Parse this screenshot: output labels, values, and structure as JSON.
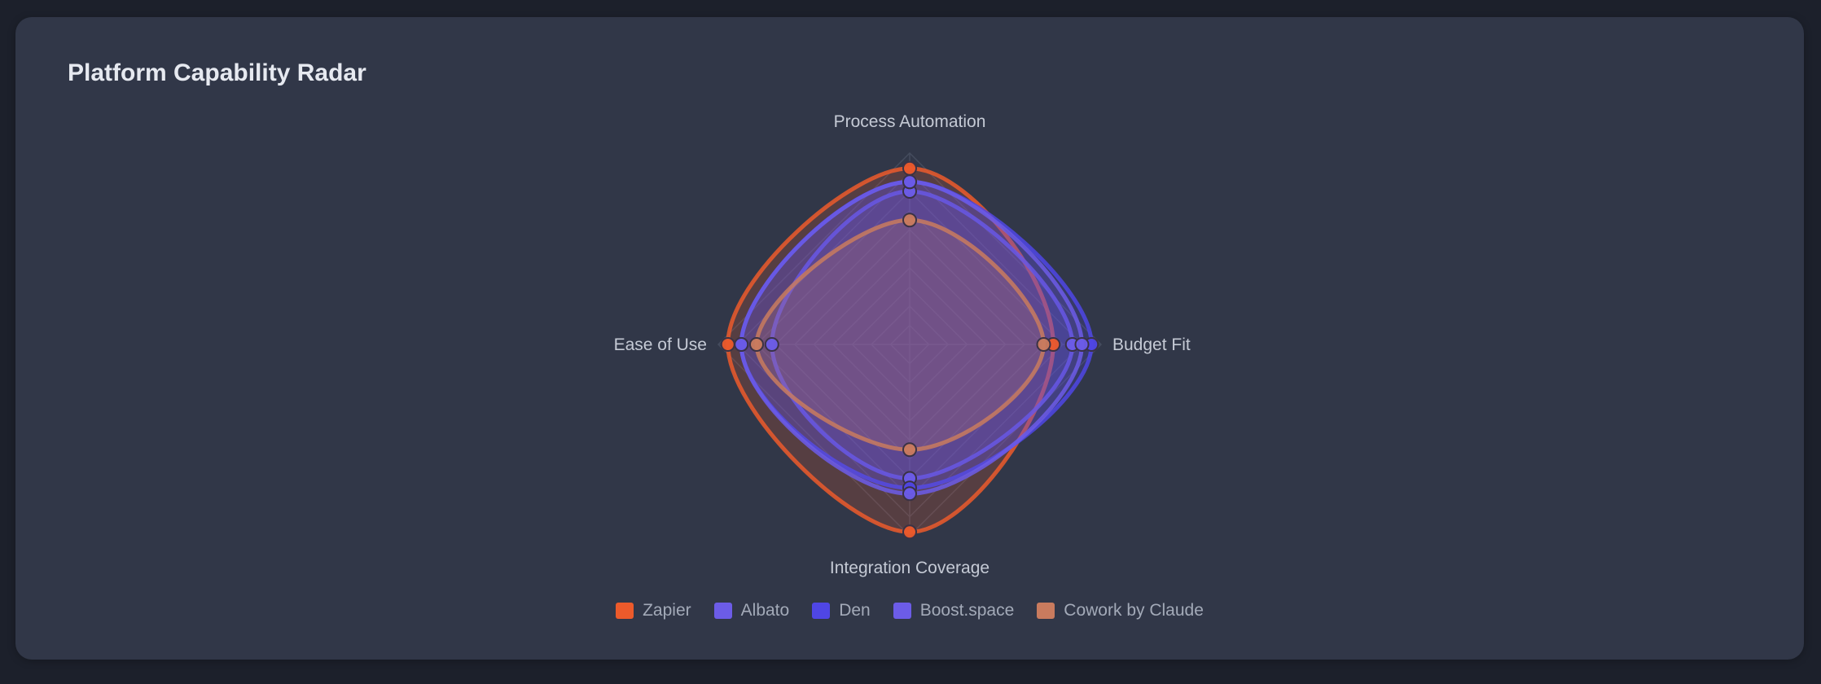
{
  "card": {
    "title": "Platform Capability Radar"
  },
  "colors": {
    "page_background": "#1c202b",
    "card_background": "#313748",
    "grid": "#454c5e",
    "axis_label": "#c5cad5",
    "legend_text": "#a3aab8"
  },
  "chart_data": {
    "type": "radar",
    "title": "Platform Capability Radar",
    "axes": [
      "Process Automation",
      "Budget Fit",
      "Integration Coverage",
      "Ease of Use"
    ],
    "range": [
      0,
      10
    ],
    "grid": true,
    "grid_levels": 10,
    "legend_position": "bottom",
    "series": [
      {
        "name": "Zapier",
        "color": "#ec5a2b",
        "values": [
          9.2,
          7.5,
          9.8,
          9.5
        ]
      },
      {
        "name": "Albato",
        "color": "#6c5ce7",
        "values": [
          8.0,
          8.5,
          7.0,
          7.2
        ]
      },
      {
        "name": "Den",
        "color": "#4f46e5",
        "values": [
          8.5,
          9.5,
          7.5,
          8.8
        ]
      },
      {
        "name": "Boost.space",
        "color": "#6c5ce7",
        "values": [
          8.5,
          9.0,
          7.8,
          8.8
        ]
      },
      {
        "name": "Cowork by Claude",
        "color": "#c97b5e",
        "values": [
          6.5,
          7.0,
          5.5,
          8.0
        ]
      }
    ]
  },
  "legend": {
    "items": [
      {
        "label": "Zapier",
        "color": "#ec5a2b"
      },
      {
        "label": "Albato",
        "color": "#6c5ce7"
      },
      {
        "label": "Den",
        "color": "#4f46e5"
      },
      {
        "label": "Boost.space",
        "color": "#6c5ce7"
      },
      {
        "label": "Cowork by Claude",
        "color": "#c97b5e"
      }
    ]
  }
}
